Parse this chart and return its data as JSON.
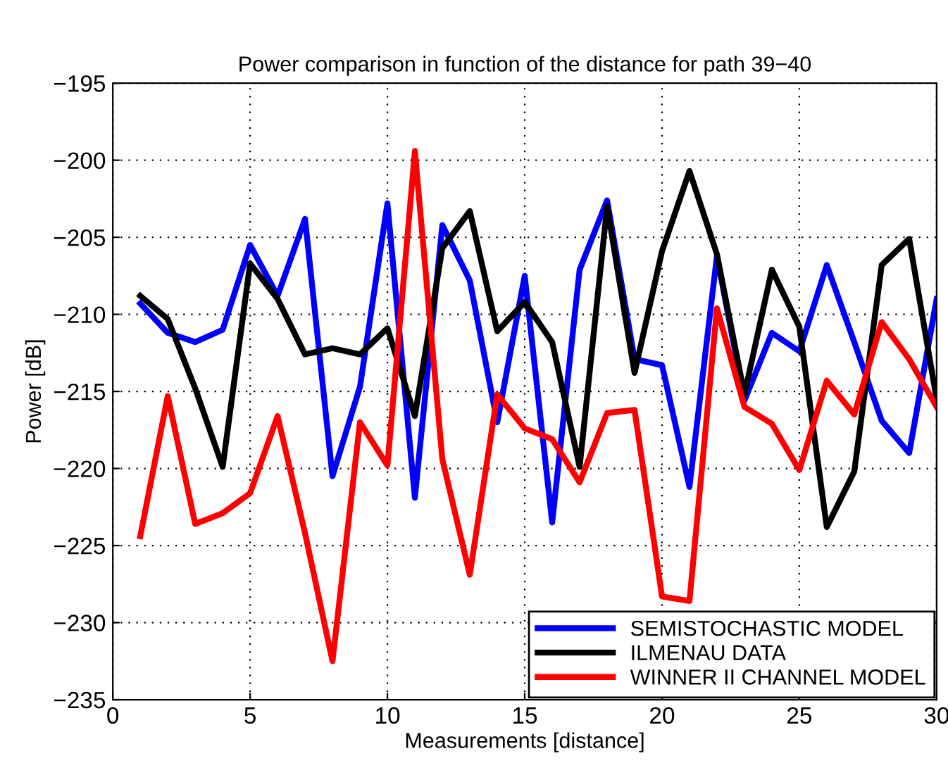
{
  "chart_data": {
    "type": "line",
    "title": "Power comparison in function of the distance for path 39−40",
    "xlabel": "Measurements [distance]",
    "ylabel": "Power [dB]",
    "x": [
      1,
      2,
      3,
      4,
      5,
      6,
      7,
      8,
      9,
      10,
      11,
      12,
      13,
      14,
      15,
      16,
      17,
      18,
      19,
      20,
      21,
      22,
      23,
      24,
      25,
      26,
      27,
      28,
      29,
      30
    ],
    "series": [
      {
        "name": "SEMISTOCHASTIC MODEL",
        "color": "#0000ff",
        "values": [
          -209.3,
          -211.2,
          -211.8,
          -211.0,
          -205.5,
          -208.8,
          -203.8,
          -220.5,
          -214.7,
          -202.8,
          -221.9,
          -204.2,
          -207.8,
          -217.0,
          -207.5,
          -223.5,
          -207.1,
          -202.6,
          -212.9,
          -213.3,
          -221.2,
          -206.2,
          -215.6,
          -211.2,
          -212.4,
          -206.8,
          -211.8,
          -216.9,
          -219.0,
          -209.0
        ]
      },
      {
        "name": "ILMENAU DATA",
        "color": "#000000",
        "values": [
          -208.8,
          -210.3,
          -214.8,
          -219.9,
          -206.7,
          -209.0,
          -212.6,
          -212.2,
          -212.6,
          -210.9,
          -216.6,
          -205.7,
          -203.3,
          -211.1,
          -209.2,
          -211.8,
          -219.9,
          -203.0,
          -213.8,
          -205.9,
          -200.7,
          -206.1,
          -215.2,
          -207.1,
          -210.8,
          -223.8,
          -220.2,
          -206.8,
          -205.1,
          -215.5
        ]
      },
      {
        "name": "WINNER II CHANNEL MODEL",
        "color": "#ff0000",
        "values": [
          -224.4,
          -215.3,
          -223.6,
          -222.9,
          -221.6,
          -216.6,
          -224.2,
          -232.5,
          -217.0,
          -219.8,
          -199.4,
          -219.4,
          -226.9,
          -215.2,
          -217.4,
          -218.1,
          -220.9,
          -216.4,
          -216.2,
          -228.3,
          -228.6,
          -209.6,
          -216.0,
          -217.1,
          -220.1,
          -214.3,
          -216.5,
          -210.5,
          -212.9,
          -216.0
        ]
      }
    ],
    "xlim": [
      0,
      30
    ],
    "xticks": [
      0,
      5,
      10,
      15,
      20,
      25,
      30
    ],
    "ylim": [
      -235,
      -195
    ],
    "yticks": [
      -235,
      -230,
      -225,
      -220,
      -215,
      -210,
      -205,
      -200,
      -195
    ],
    "grid": true,
    "legend": "bottom right",
    "line_style": "solid",
    "marker": "none"
  }
}
